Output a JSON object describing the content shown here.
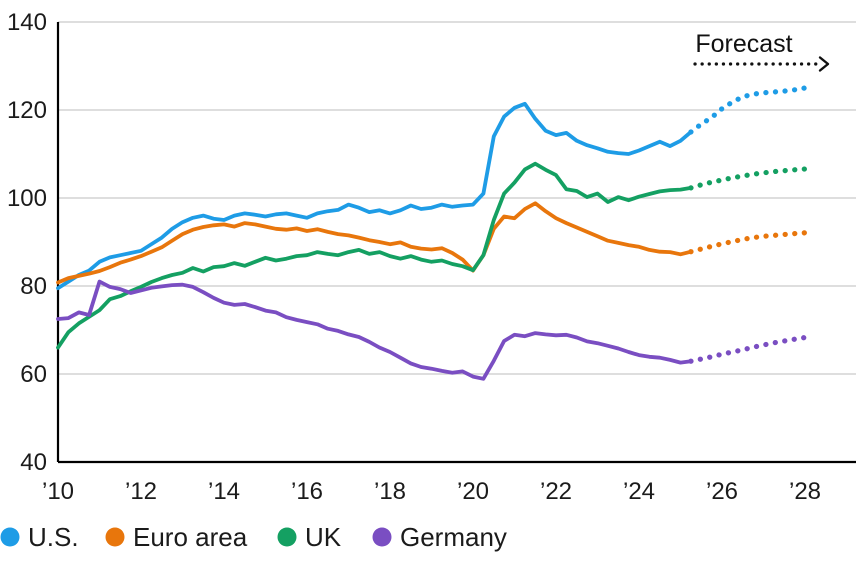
{
  "axes": {
    "y_tick_labels": [
      "140",
      "120",
      "100",
      "80",
      "60",
      "40"
    ],
    "y_tick_values": [
      140,
      120,
      100,
      80,
      60,
      40
    ],
    "x_tick_labels": [
      "’10",
      "’12",
      "’14",
      "’16",
      "’18",
      "’20",
      "’22",
      "’24",
      "’26",
      "’28"
    ],
    "x_tick_years": [
      2010,
      2012,
      2014,
      2016,
      2018,
      2020,
      2022,
      2024,
      2026,
      2028
    ]
  },
  "chart_data": {
    "type": "line",
    "forecast_annotation": "Forecast",
    "grid": true,
    "legend_position": "bottom",
    "ylim": [
      40,
      140
    ],
    "xlim": [
      2010,
      2029.2
    ],
    "forecast_start_x": 2025.25,
    "forecast_start_index": 61,
    "x": [
      2010,
      2010.25,
      2010.5,
      2010.75,
      2011,
      2011.25,
      2011.5,
      2011.75,
      2012,
      2012.25,
      2012.5,
      2012.75,
      2013,
      2013.25,
      2013.5,
      2013.75,
      2014,
      2014.25,
      2014.5,
      2014.75,
      2015,
      2015.25,
      2015.5,
      2015.75,
      2016,
      2016.25,
      2016.5,
      2016.75,
      2017,
      2017.25,
      2017.5,
      2017.75,
      2018,
      2018.25,
      2018.5,
      2018.75,
      2019,
      2019.25,
      2019.5,
      2019.75,
      2020,
      2020.25,
      2020.5,
      2020.75,
      2021,
      2021.25,
      2021.5,
      2021.75,
      2022,
      2022.25,
      2022.5,
      2022.75,
      2023,
      2023.25,
      2023.5,
      2023.75,
      2024,
      2024.25,
      2024.5,
      2024.75,
      2025,
      2025.25,
      2025.5,
      2025.75,
      2026,
      2026.25,
      2026.5,
      2026.75,
      2027,
      2027.25,
      2027.5,
      2027.75,
      2028
    ],
    "series": [
      {
        "name": "U.S.",
        "color": "#1e9ce6",
        "values": [
          79.5,
          81,
          82.5,
          83.5,
          85.5,
          86.5,
          87,
          87.5,
          88,
          89.5,
          91,
          93,
          94.5,
          95.5,
          96,
          95.3,
          95,
          96,
          96.5,
          96.2,
          95.8,
          96.3,
          96.5,
          96,
          95.5,
          96.5,
          97,
          97.3,
          98.5,
          97.8,
          96.8,
          97.2,
          96.5,
          97.2,
          98.3,
          97.5,
          97.8,
          98.5,
          98,
          98.3,
          98.5,
          101,
          114,
          118.5,
          120.5,
          121.4,
          118,
          115.3,
          114.3,
          114.8,
          113,
          112,
          111.3,
          110.5,
          110.2,
          110,
          110.8,
          111.8,
          112.8,
          111.8,
          113,
          115,
          116.8,
          118.3,
          120.3,
          121.8,
          123,
          123.6,
          123.9,
          124.1,
          124.3,
          124.6,
          125
        ]
      },
      {
        "name": "Euro area",
        "color": "#e8760c",
        "values": [
          80.8,
          81.8,
          82.3,
          82.8,
          83.4,
          84.3,
          85.3,
          86,
          86.8,
          87.8,
          88.8,
          90.3,
          91.8,
          92.8,
          93.4,
          93.8,
          94,
          93.5,
          94.3,
          94,
          93.5,
          93,
          92.8,
          93.1,
          92.5,
          92.9,
          92.3,
          91.8,
          91.5,
          91,
          90.4,
          90,
          89.5,
          89.9,
          88.9,
          88.5,
          88.3,
          88.6,
          87.5,
          86,
          83.5,
          87,
          93,
          95.8,
          95.4,
          97.5,
          98.8,
          97,
          95.4,
          94.3,
          93.3,
          92.3,
          91.3,
          90.3,
          89.8,
          89.3,
          88.9,
          88.2,
          87.8,
          87.7,
          87.2,
          87.8,
          88.4,
          89,
          89.6,
          90.1,
          90.6,
          91,
          91.3,
          91.5,
          91.7,
          91.9,
          92.1
        ]
      },
      {
        "name": "UK",
        "color": "#14a062",
        "values": [
          66,
          69.5,
          71.5,
          73,
          74.5,
          77,
          77.7,
          78.8,
          79.8,
          80.9,
          81.8,
          82.5,
          83,
          84.1,
          83.3,
          84.3,
          84.5,
          85.2,
          84.6,
          85.5,
          86.4,
          85.8,
          86.2,
          86.8,
          87,
          87.7,
          87.3,
          87,
          87.7,
          88.2,
          87.3,
          87.7,
          86.8,
          86.2,
          86.8,
          86,
          85.5,
          85.8,
          85,
          84.5,
          83.6,
          87,
          95,
          101,
          103.5,
          106.5,
          107.8,
          106.4,
          105.2,
          102,
          101.6,
          100.2,
          101,
          99.1,
          100.2,
          99.5,
          100.3,
          100.9,
          101.5,
          101.8,
          101.9,
          102.3,
          103,
          103.6,
          104.1,
          104.6,
          105,
          105.4,
          105.7,
          106,
          106.2,
          106.4,
          106.6
        ]
      },
      {
        "name": "Germany",
        "color": "#7a4ec2",
        "values": [
          72.5,
          72.7,
          74,
          73.4,
          81,
          79.8,
          79.3,
          78.4,
          79,
          79.6,
          79.9,
          80.2,
          80.3,
          79.8,
          78.6,
          77.3,
          76.2,
          75.7,
          75.9,
          75.2,
          74.4,
          74,
          72.9,
          72.3,
          71.8,
          71.3,
          70.3,
          69.8,
          69,
          68.4,
          67.3,
          66,
          65,
          63.7,
          62.4,
          61.6,
          61.2,
          60.7,
          60.3,
          60.6,
          59.4,
          58.9,
          63,
          67.5,
          68.9,
          68.6,
          69.3,
          69,
          68.8,
          68.9,
          68.3,
          67.4,
          67,
          66.4,
          65.8,
          65,
          64.3,
          63.9,
          63.7,
          63.2,
          62.6,
          62.9,
          63.4,
          63.9,
          64.5,
          65,
          65.5,
          66.1,
          66.6,
          67.1,
          67.5,
          67.9,
          68.3
        ]
      }
    ],
    "style": {
      "grid_color": "#c9c9c9",
      "axis_color": "#000000",
      "text_color": "#1b1b1b",
      "background": "#ffffff"
    }
  }
}
